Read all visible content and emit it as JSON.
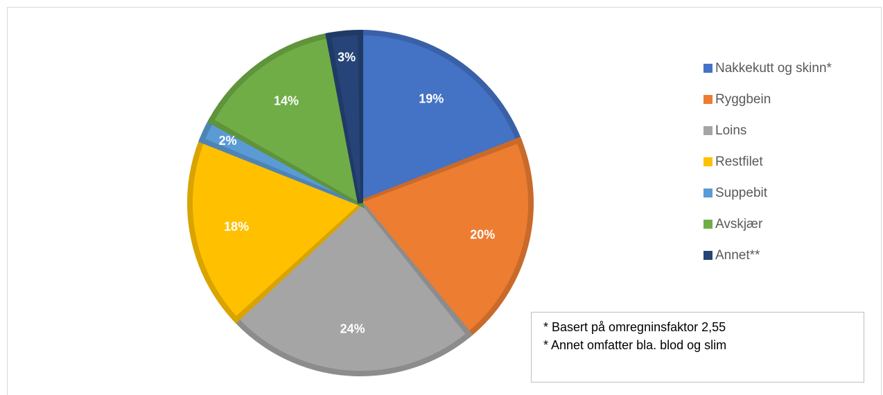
{
  "chart_data": {
    "type": "pie",
    "title": "",
    "start_angle_deg": 0,
    "direction": "clockwise",
    "slices": [
      {
        "name": "Nakkekutt og skinn*",
        "value": 19,
        "label": "19%",
        "color": "#4472c4"
      },
      {
        "name": "Ryggbein",
        "value": 20,
        "label": "20%",
        "color": "#ed7d31"
      },
      {
        "name": "Loins",
        "value": 24,
        "label": "24%",
        "color": "#a5a5a5"
      },
      {
        "name": "Restfilet",
        "value": 18,
        "label": "18%",
        "color": "#ffc000"
      },
      {
        "name": "Suppebit",
        "value": 2,
        "label": "2%",
        "color": "#5b9bd5"
      },
      {
        "name": "Avskjær",
        "value": 14,
        "label": "14%",
        "color": "#70ad47"
      },
      {
        "name": "Annet**",
        "value": 3,
        "label": "3%",
        "color": "#264478"
      }
    ],
    "legend": {
      "placement": "right"
    },
    "notes": [
      "* Basert på omregninsfaktor 2,55",
      "* Annet omfatter bla. blod og slim"
    ]
  }
}
